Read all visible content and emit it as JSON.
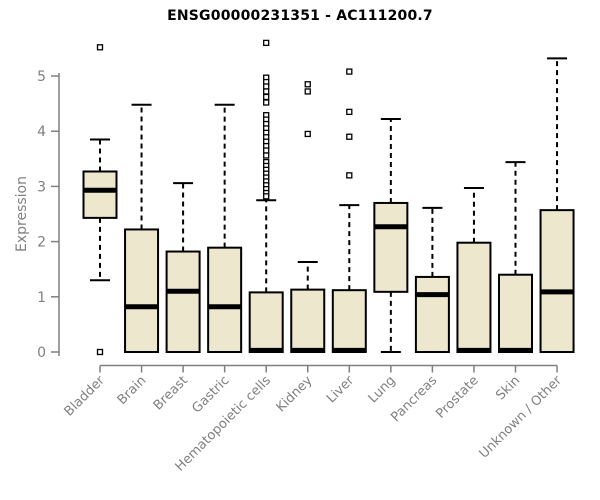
{
  "chart_data": {
    "type": "boxplot",
    "title": "ENSG00000231351 - AC111200.7",
    "ylabel": "Expression",
    "ylim": [
      0,
      5.65
    ],
    "yticks": [
      0,
      1,
      2,
      3,
      4,
      5
    ],
    "grid": false,
    "legend": null,
    "categories": [
      "Bladder",
      "Brain",
      "Breast",
      "Gastric",
      "Hematopoietic cells",
      "Kidney",
      "Liver",
      "Lung",
      "Pancreas",
      "Prostate",
      "Skin",
      "Unknown / Other"
    ],
    "boxes": [
      {
        "category": "Bladder",
        "whisker_low": 1.3,
        "q1": 2.43,
        "median": 2.93,
        "q3": 3.27,
        "whisker_high": 3.85,
        "outliers": [
          5.52,
          0.0
        ]
      },
      {
        "category": "Brain",
        "whisker_low": 0,
        "q1": 0,
        "median": 0.82,
        "q3": 2.22,
        "whisker_high": 4.48,
        "outliers": []
      },
      {
        "category": "Breast",
        "whisker_low": 0,
        "q1": 0,
        "median": 1.1,
        "q3": 1.82,
        "whisker_high": 3.06,
        "outliers": []
      },
      {
        "category": "Gastric",
        "whisker_low": 0,
        "q1": 0,
        "median": 0.82,
        "q3": 1.89,
        "whisker_high": 4.48,
        "outliers": []
      },
      {
        "category": "Hematopoietic cells",
        "whisker_low": 0,
        "q1": 0,
        "median": 0.03,
        "q3": 1.08,
        "whisker_high": 2.75,
        "outliers": [
          5.6,
          4.97,
          4.89,
          4.81,
          4.72,
          4.62,
          4.52,
          4.29,
          4.21,
          4.13,
          4.05,
          3.97,
          3.89,
          3.81,
          3.73,
          3.65,
          3.56,
          3.44,
          3.37,
          3.3,
          3.23,
          3.16,
          3.09,
          3.02,
          2.95,
          2.88,
          2.82
        ]
      },
      {
        "category": "Kidney",
        "whisker_low": 0,
        "q1": 0,
        "median": 0.03,
        "q3": 1.13,
        "whisker_high": 1.63,
        "outliers": [
          4.85,
          4.72,
          3.95
        ]
      },
      {
        "category": "Liver",
        "whisker_low": 0,
        "q1": 0,
        "median": 0.03,
        "q3": 1.12,
        "whisker_high": 2.66,
        "outliers": [
          5.08,
          4.35,
          3.9,
          3.2
        ]
      },
      {
        "category": "Lung",
        "whisker_low": 0,
        "q1": 1.09,
        "median": 2.27,
        "q3": 2.7,
        "whisker_high": 4.22,
        "outliers": []
      },
      {
        "category": "Pancreas",
        "whisker_low": 0,
        "q1": 0,
        "median": 1.04,
        "q3": 1.36,
        "whisker_high": 2.61,
        "outliers": []
      },
      {
        "category": "Prostate",
        "whisker_low": 0,
        "q1": 0,
        "median": 0.03,
        "q3": 1.98,
        "whisker_high": 2.97,
        "outliers": []
      },
      {
        "category": "Skin",
        "whisker_low": 0,
        "q1": 0,
        "median": 0.03,
        "q3": 1.4,
        "whisker_high": 3.44,
        "outliers": []
      },
      {
        "category": "Unknown / Other",
        "whisker_low": 0,
        "q1": 0,
        "median": 1.09,
        "q3": 2.57,
        "whisker_high": 5.32,
        "outliers": []
      }
    ],
    "style": {
      "box_fill": "#ece7cd",
      "box_stroke": "#000000",
      "median_color": "#000000",
      "whisker_color": "#000000",
      "outlier_stroke": "#000000",
      "axis_color": "#808080",
      "tick_label_color": "#808080",
      "title_color": "#000000",
      "background": "#ffffff"
    }
  }
}
